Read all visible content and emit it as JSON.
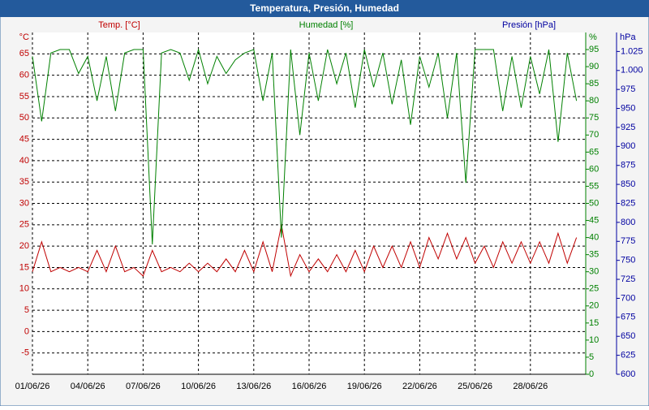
{
  "chart_data": {
    "type": "line",
    "title": "Temperatura, Presión, Humedad",
    "y_label": "Temp. [°C]",
    "y_unit": "°C",
    "y2_label": "Humedad [%]",
    "y2_unit": "%",
    "y3_label": "Presión [hPa]",
    "y3_unit": "hPa",
    "xlim": [
      0,
      30
    ],
    "xticks": [
      {
        "value": 0,
        "label": "01/06/26"
      },
      {
        "value": 3,
        "label": "04/06/26"
      },
      {
        "value": 6,
        "label": "07/06/26"
      },
      {
        "value": 9,
        "label": "10/06/26"
      },
      {
        "value": 12,
        "label": "13/06/26"
      },
      {
        "value": 15,
        "label": "16/06/26"
      },
      {
        "value": 18,
        "label": "19/06/26"
      },
      {
        "value": 21,
        "label": "22/06/26"
      },
      {
        "value": 24,
        "label": "25/06/26"
      },
      {
        "value": 27,
        "label": "28/06/26"
      }
    ],
    "ylim": [
      -10,
      70
    ],
    "yticks": [
      -5,
      0,
      5,
      10,
      15,
      20,
      25,
      30,
      35,
      40,
      45,
      50,
      55,
      60,
      65
    ],
    "y2lim": [
      0,
      100
    ],
    "y2ticks": [
      0,
      5,
      10,
      15,
      20,
      25,
      30,
      35,
      40,
      45,
      50,
      55,
      60,
      65,
      70,
      75,
      80,
      85,
      90,
      95
    ],
    "y3lim": [
      600,
      1050
    ],
    "y3ticks": [
      600,
      625,
      650,
      675,
      700,
      725,
      750,
      775,
      800,
      825,
      850,
      875,
      900,
      925,
      950,
      975,
      {
        "value": 1000,
        "label": "1.000"
      },
      {
        "value": 1025,
        "label": "1.025"
      }
    ],
    "grid": true,
    "x": [
      0,
      0.5,
      1,
      1.5,
      2,
      2.5,
      3,
      3.5,
      4,
      4.5,
      5,
      5.5,
      6,
      6.5,
      7,
      7.5,
      8,
      8.5,
      9,
      9.5,
      10,
      10.5,
      11,
      11.5,
      12,
      12.5,
      13,
      13.5,
      14,
      14.5,
      15,
      15.5,
      16,
      16.5,
      17,
      17.5,
      18,
      18.5,
      19,
      19.5,
      20,
      20.5,
      21,
      21.5,
      22,
      22.5,
      23,
      23.5,
      24,
      24.5,
      25,
      25.5,
      26,
      26.5,
      27,
      27.5,
      28,
      28.5,
      29,
      29.5
    ],
    "series": [
      {
        "color": "#c00000",
        "axis": "y",
        "values": [
          14,
          21,
          14,
          15,
          14,
          15,
          14,
          19,
          14,
          20,
          14,
          15,
          13,
          19,
          14,
          15,
          14,
          16,
          14,
          16,
          14,
          17,
          14,
          19,
          14,
          21,
          14,
          25,
          13,
          18,
          14,
          17,
          14,
          18,
          14,
          19,
          14,
          20,
          15,
          20,
          15,
          21,
          15,
          22,
          17,
          23,
          17,
          22,
          16,
          20,
          15,
          21,
          16,
          21,
          16,
          21,
          16,
          23,
          16,
          22
        ]
      },
      {
        "color": "#008000",
        "axis": "y2",
        "values": [
          93,
          74,
          94,
          95,
          95,
          88,
          93,
          80,
          93,
          77,
          94,
          95,
          95,
          38,
          94,
          95,
          94,
          86,
          95,
          85,
          93,
          88,
          92,
          94,
          95,
          80,
          94,
          40,
          95,
          70,
          94,
          80,
          95,
          85,
          94,
          78,
          95,
          84,
          94,
          79,
          92,
          73,
          93,
          84,
          94,
          75,
          94,
          56,
          95,
          95,
          95,
          77,
          93,
          78,
          93,
          82,
          95,
          68,
          94,
          80
        ]
      }
    ]
  }
}
